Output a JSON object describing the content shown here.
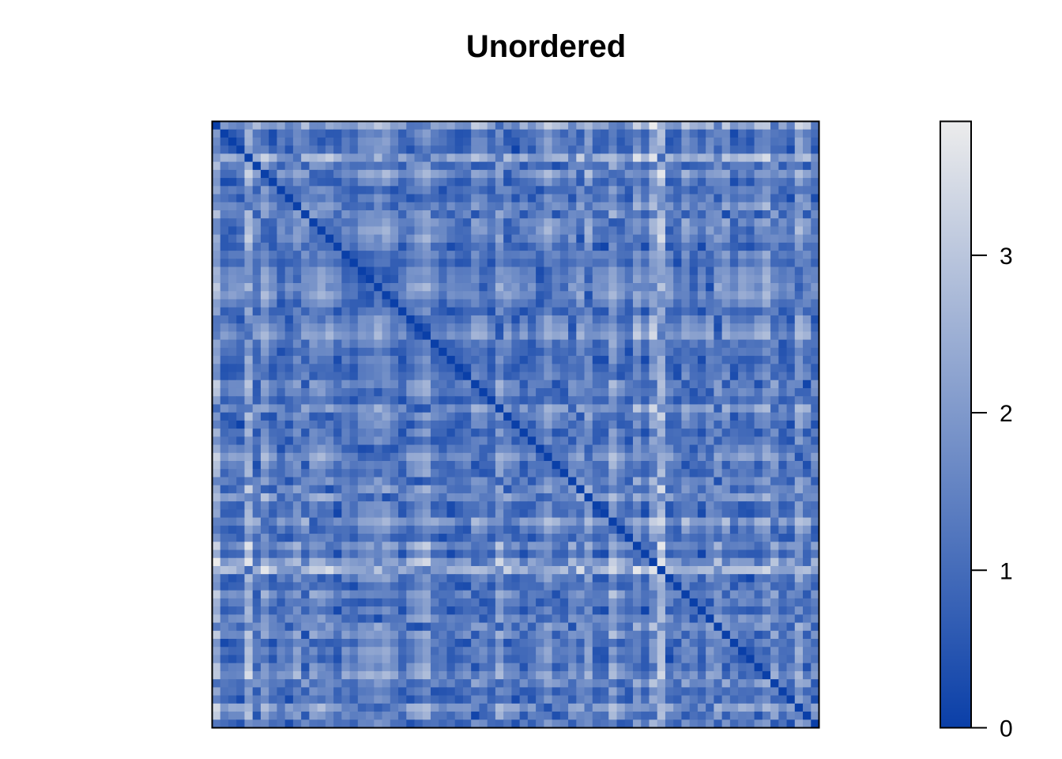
{
  "chart_data": {
    "type": "heatmap",
    "title": "Unordered",
    "xlabel": "",
    "ylabel": "",
    "matrix_size": 75,
    "value_range": [
      0,
      3.85
    ],
    "diagonal_value": 0,
    "color_low": "#0a3fa8",
    "color_high": "#ececec",
    "legend": {
      "placement": "right",
      "ticks": [
        0,
        1,
        2,
        3
      ],
      "tick_labels": [
        "0",
        "1",
        "2",
        "3"
      ]
    }
  }
}
